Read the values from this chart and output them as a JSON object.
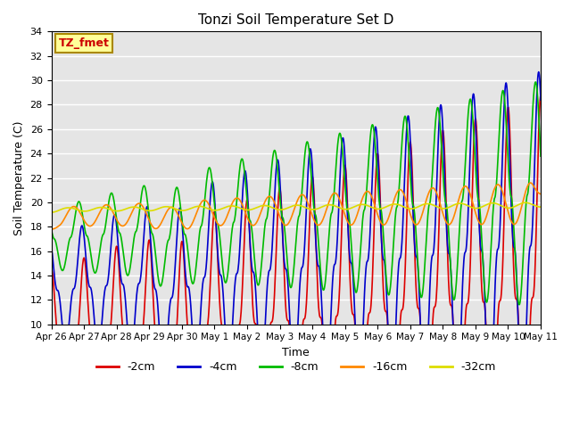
{
  "title": "Tonzi Soil Temperature Set D",
  "xlabel": "Time",
  "ylabel": "Soil Temperature (C)",
  "ylim": [
    10,
    34
  ],
  "annotation_text": "TZ_fmet",
  "annotation_color": "#cc0000",
  "annotation_bg": "#ffff99",
  "annotation_border": "#aa8800",
  "series": {
    "-2cm": {
      "color": "#dd0000",
      "lw": 1.2
    },
    "-4cm": {
      "color": "#0000cc",
      "lw": 1.2
    },
    "-8cm": {
      "color": "#00bb00",
      "lw": 1.2
    },
    "-16cm": {
      "color": "#ff8800",
      "lw": 1.2
    },
    "-32cm": {
      "color": "#dddd00",
      "lw": 1.2
    }
  },
  "bg_color": "#e5e5e5",
  "grid_color": "#ffffff",
  "tick_labels": [
    "Apr 26",
    "Apr 27",
    "Apr 28",
    "Apr 29",
    "Apr 30",
    "May 1",
    "May 2",
    "May 3",
    "May 4",
    "May 5",
    "May 6",
    "May 7",
    "May 8",
    "May 9",
    "May 10",
    "May 11"
  ],
  "n_points": 1440
}
